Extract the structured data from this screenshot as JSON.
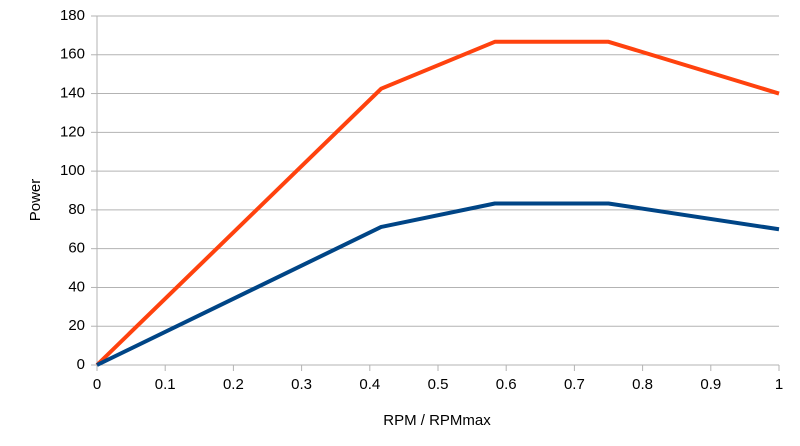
{
  "chart_data": {
    "type": "line",
    "x_label": "RPM / RPMmax",
    "y_label": "Power",
    "x": [
      0,
      0.4167,
      0.5833,
      0.75,
      1
    ],
    "series": [
      {
        "color": "#ff420e",
        "values": [
          0,
          142.5,
          166.7,
          166.7,
          140
        ]
      },
      {
        "color": "#004586",
        "values": [
          0,
          71.2,
          83.3,
          83.3,
          70
        ]
      }
    ],
    "xlim": [
      0,
      1
    ],
    "xticks": [
      0,
      0.1,
      0.2,
      0.3,
      0.4,
      0.5,
      0.6,
      0.7,
      0.8,
      0.9,
      1
    ],
    "ylim": [
      0,
      180
    ],
    "yticks": [
      0,
      20,
      40,
      60,
      80,
      100,
      120,
      140,
      160,
      180
    ],
    "grid": true
  }
}
